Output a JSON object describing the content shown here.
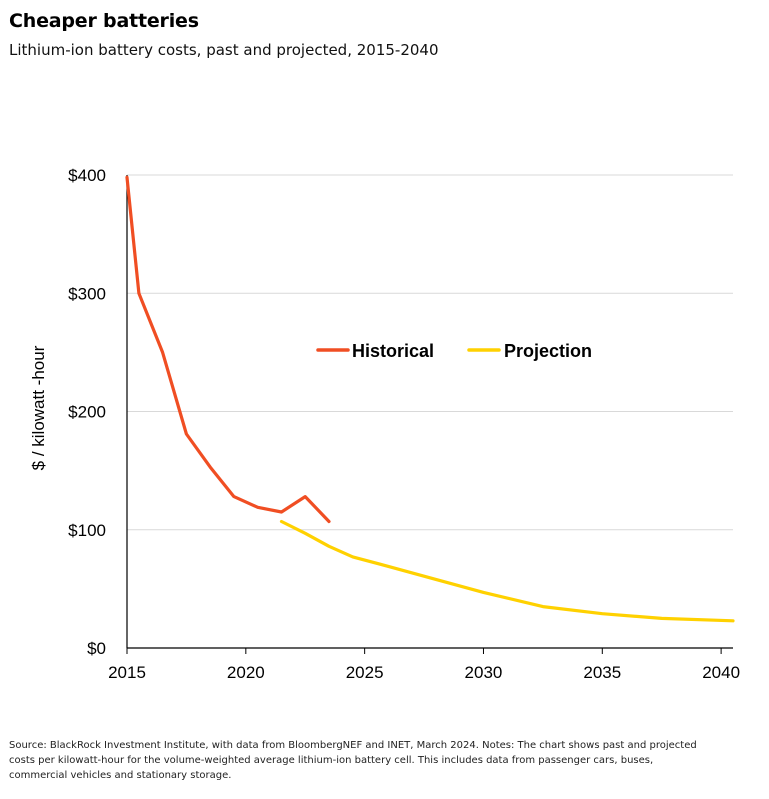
{
  "header": {
    "title": "Cheaper batteries",
    "subtitle": "Lithium-ion battery costs, past and projected, 2015-2040"
  },
  "footer": {
    "source": "Source: BlackRock Investment Institute, with data from BloombergNEF and INET, March 2024. Notes: The chart shows past and projected costs per kilowatt-hour for the volume-weighted average lithium-ion battery cell. This includes data from passenger cars, buses, commercial vehicles and stationary storage."
  },
  "colors": {
    "historical": "#F04E23",
    "projection": "#FFD100",
    "grid": "#d9d9d9",
    "axis": "#000000"
  },
  "chart_data": {
    "type": "line",
    "title": "Cheaper batteries",
    "subtitle": "Lithium-ion battery costs, past and projected, 2015-2040",
    "ylabel": "$ / kilowatt  -hour",
    "xlabel": "",
    "xlim": [
      2015,
      2040.5
    ],
    "ylim": [
      0,
      400
    ],
    "x_ticks": [
      2015,
      2020,
      2025,
      2030,
      2035,
      2040
    ],
    "x_tick_labels": [
      "2015",
      "2020",
      "2025",
      "2030",
      "2035",
      "2040"
    ],
    "y_ticks": [
      0,
      100,
      200,
      300,
      400
    ],
    "y_tick_labels": [
      "$0",
      "$100",
      "$200",
      "$300",
      "$400"
    ],
    "grid": "horizontal",
    "legend_position": "center",
    "series": [
      {
        "name": "Historical",
        "color": "#F04E23",
        "x": [
          2015,
          2015.5,
          2016.5,
          2017.5,
          2018.5,
          2019.5,
          2020.5,
          2021.5,
          2022.5,
          2023.5
        ],
        "values": [
          398,
          300,
          250,
          181,
          153,
          128,
          119,
          115,
          128,
          107
        ]
      },
      {
        "name": "Projection",
        "color": "#FFD100",
        "x": [
          2021.5,
          2022.5,
          2023.5,
          2024.5,
          2026,
          2028,
          2030,
          2032.5,
          2035,
          2037.5,
          2040.5
        ],
        "values": [
          107,
          97,
          86,
          77,
          69,
          58,
          47,
          35,
          29,
          25,
          23
        ]
      }
    ]
  }
}
